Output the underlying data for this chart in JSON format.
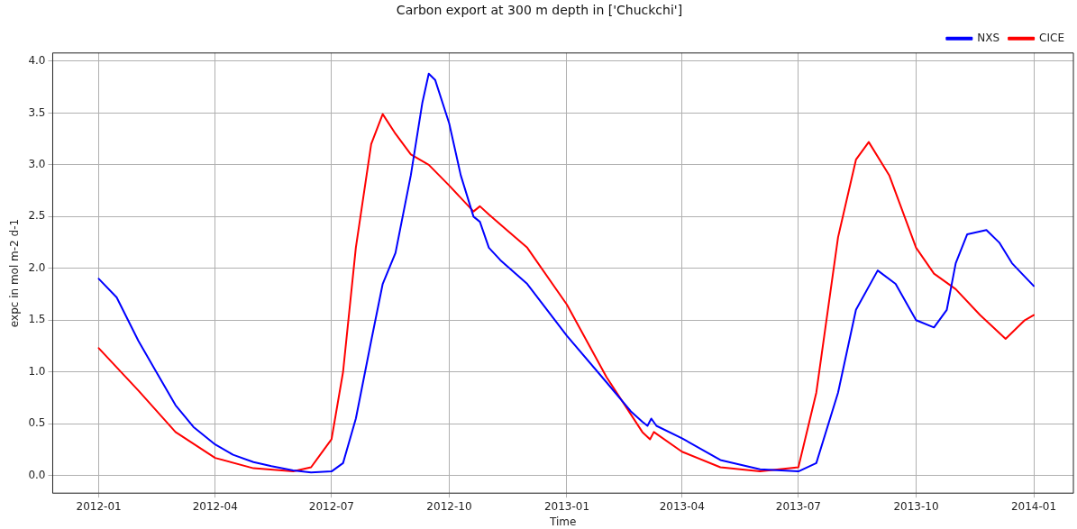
{
  "chart_data": {
    "type": "line",
    "title": "Carbon export at 300 m depth in ['Chuckchi']",
    "xlabel": "Time",
    "ylabel": "expc in mol m-2 d-1",
    "xlim": [
      "2011-11-26",
      "2014-02-01"
    ],
    "xticks": [
      "2012-01",
      "2012-04",
      "2012-07",
      "2012-10",
      "2013-01",
      "2013-04",
      "2013-07",
      "2013-10",
      "2014-01"
    ],
    "ylim": [
      -0.17,
      4.08
    ],
    "yticks": [
      {
        "value": 0,
        "label": "0.0"
      },
      0.5,
      {
        "value": 1,
        "label": "1.0"
      },
      1.5,
      {
        "value": 2,
        "label": "2.0"
      },
      2.5,
      {
        "value": 3,
        "label": "3.0"
      },
      3.5,
      {
        "value": 4,
        "label": "4.0"
      }
    ],
    "grid": true,
    "legend": "top right",
    "marker": "none",
    "line_style": "solid",
    "series": [
      {
        "name": "NXS",
        "color": "#0000ff",
        "x": [
          "2012-01-01",
          "2012-01-15",
          "2012-02-01",
          "2012-02-15",
          "2012-03-01",
          "2012-03-15",
          "2012-04-01",
          "2012-04-15",
          "2012-05-01",
          "2012-05-15",
          "2012-06-01",
          "2012-06-15",
          "2012-07-01",
          "2012-07-10",
          "2012-07-20",
          "2012-08-01",
          "2012-08-10",
          "2012-08-20",
          "2012-09-01",
          "2012-09-10",
          "2012-09-15",
          "2012-09-20",
          "2012-10-01",
          "2012-10-10",
          "2012-10-20",
          "2012-10-25",
          "2012-11-01",
          "2012-11-10",
          "2012-12-01",
          "2013-01-01",
          "2013-02-01",
          "2013-02-20",
          "2013-03-01",
          "2013-03-05",
          "2013-03-08",
          "2013-03-12",
          "2013-04-01",
          "2013-05-01",
          "2013-06-01",
          "2013-07-01",
          "2013-07-15",
          "2013-08-01",
          "2013-08-15",
          "2013-09-01",
          "2013-09-15",
          "2013-10-01",
          "2013-10-15",
          "2013-10-25",
          "2013-11-01",
          "2013-11-10",
          "2013-11-25",
          "2013-12-05",
          "2013-12-15",
          "2014-01-01"
        ],
        "values": [
          1.9,
          1.72,
          1.3,
          1.0,
          0.68,
          0.47,
          0.3,
          0.2,
          0.13,
          0.09,
          0.05,
          0.03,
          0.04,
          0.12,
          0.55,
          1.3,
          1.85,
          2.15,
          2.9,
          3.6,
          3.88,
          3.82,
          3.4,
          2.9,
          2.5,
          2.45,
          2.2,
          2.08,
          1.85,
          1.35,
          0.9,
          0.62,
          0.52,
          0.48,
          0.55,
          0.48,
          0.36,
          0.15,
          0.06,
          0.04,
          0.12,
          0.8,
          1.6,
          1.98,
          1.85,
          1.5,
          1.43,
          1.6,
          2.05,
          2.33,
          2.37,
          2.25,
          2.05,
          1.83
        ]
      },
      {
        "name": "CICE",
        "color": "#ff0000",
        "x": [
          "2012-01-01",
          "2012-02-01",
          "2012-03-01",
          "2012-04-01",
          "2012-05-01",
          "2012-06-01",
          "2012-06-15",
          "2012-07-01",
          "2012-07-10",
          "2012-07-20",
          "2012-08-01",
          "2012-08-10",
          "2012-08-20",
          "2012-09-01",
          "2012-09-15",
          "2012-10-01",
          "2012-10-20",
          "2012-10-25",
          "2012-11-01",
          "2012-12-01",
          "2013-01-01",
          "2013-02-01",
          "2013-03-01",
          "2013-03-07",
          "2013-03-10",
          "2013-04-01",
          "2013-05-01",
          "2013-06-01",
          "2013-07-01",
          "2013-07-15",
          "2013-08-01",
          "2013-08-15",
          "2013-08-25",
          "2013-09-10",
          "2013-10-01",
          "2013-10-15",
          "2013-11-01",
          "2013-11-20",
          "2013-12-10",
          "2013-12-25",
          "2014-01-01"
        ],
        "values": [
          1.23,
          0.82,
          0.42,
          0.17,
          0.07,
          0.04,
          0.08,
          0.35,
          1.0,
          2.2,
          3.2,
          3.49,
          3.3,
          3.1,
          3.0,
          2.8,
          2.55,
          2.6,
          2.52,
          2.2,
          1.65,
          0.95,
          0.42,
          0.35,
          0.42,
          0.23,
          0.08,
          0.04,
          0.08,
          0.8,
          2.3,
          3.05,
          3.22,
          2.9,
          2.2,
          1.95,
          1.8,
          1.55,
          1.32,
          1.5,
          1.55
        ]
      }
    ]
  }
}
